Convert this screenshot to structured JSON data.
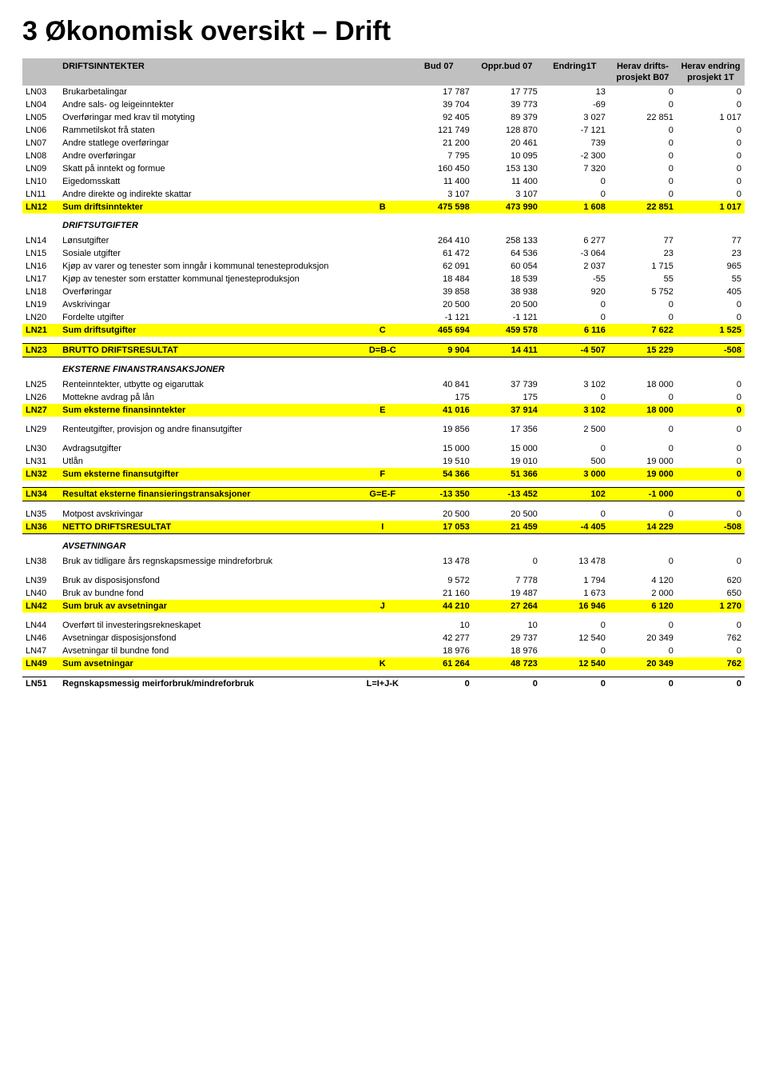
{
  "title": "3  Økonomisk oversikt – Drift",
  "header": {
    "section1": "DRIFTSINNTEKTER",
    "cols": [
      "Bud 07",
      "Oppr.bud 07",
      "Endring1T",
      "Herav drifts-prosjekt B07",
      "Herav endring prosjekt 1T"
    ]
  },
  "colors": {
    "header_bg": "#c0c0c0",
    "highlight": "#ffff00",
    "text": "#000000",
    "bg": "#ffffff"
  },
  "rows": [
    {
      "t": "r",
      "c": "LN03",
      "l": "Brukarbetalingar",
      "v": [
        "17 787",
        "17 775",
        "13",
        "0",
        "0"
      ]
    },
    {
      "t": "r",
      "c": "LN04",
      "l": "Andre sals- og leigeinntekter",
      "v": [
        "39 704",
        "39 773",
        "-69",
        "0",
        "0"
      ]
    },
    {
      "t": "r",
      "c": "LN05",
      "l": "Overføringar med krav til motyting",
      "v": [
        "92 405",
        "89 379",
        "3 027",
        "22 851",
        "1 017"
      ]
    },
    {
      "t": "r",
      "c": "LN06",
      "l": "Rammetilskot frå staten",
      "v": [
        "121 749",
        "128 870",
        "-7 121",
        "0",
        "0"
      ]
    },
    {
      "t": "r",
      "c": "LN07",
      "l": "Andre statlege overføringar",
      "v": [
        "21 200",
        "20 461",
        "739",
        "0",
        "0"
      ]
    },
    {
      "t": "r",
      "c": "LN08",
      "l": "Andre overføringar",
      "v": [
        "7 795",
        "10 095",
        "-2 300",
        "0",
        "0"
      ]
    },
    {
      "t": "r",
      "c": "LN09",
      "l": "Skatt på inntekt og formue",
      "v": [
        "160 450",
        "153 130",
        "7 320",
        "0",
        "0"
      ]
    },
    {
      "t": "r",
      "c": "LN10",
      "l": "Eigedomsskatt",
      "v": [
        "11 400",
        "11 400",
        "0",
        "0",
        "0"
      ]
    },
    {
      "t": "r",
      "c": "LN11",
      "l": "Andre direkte og indirekte skattar",
      "v": [
        "3 107",
        "3 107",
        "0",
        "0",
        "0"
      ]
    },
    {
      "t": "y",
      "c": "LN12",
      "l": "Sum driftsinntekter",
      "f": "B",
      "v": [
        "475 598",
        "473 990",
        "1 608",
        "22 851",
        "1 017"
      ]
    },
    {
      "t": "sec",
      "l": "DRIFTSUTGIFTER"
    },
    {
      "t": "r",
      "c": "LN14",
      "l": "Lønsutgifter",
      "v": [
        "264 410",
        "258 133",
        "6 277",
        "77",
        "77"
      ]
    },
    {
      "t": "r",
      "c": "LN15",
      "l": "Sosiale utgifter",
      "v": [
        "61 472",
        "64 536",
        "-3 064",
        "23",
        "23"
      ]
    },
    {
      "t": "r",
      "c": "LN16",
      "l": "Kjøp av varer og tenester som inngår i kommunal tenesteproduksjon",
      "v": [
        "62 091",
        "60 054",
        "2 037",
        "1 715",
        "965"
      ]
    },
    {
      "t": "r",
      "c": "LN17",
      "l": "Kjøp av tenester som erstatter kommunal tjenesteproduksjon",
      "v": [
        "18 484",
        "18 539",
        "-55",
        "55",
        "55"
      ]
    },
    {
      "t": "r",
      "c": "LN18",
      "l": "Overføringar",
      "v": [
        "39 858",
        "38 938",
        "920",
        "5 752",
        "405"
      ]
    },
    {
      "t": "r",
      "c": "LN19",
      "l": "Avskrivingar",
      "v": [
        "20 500",
        "20 500",
        "0",
        "0",
        "0"
      ]
    },
    {
      "t": "r",
      "c": "LN20",
      "l": "Fordelte utgifter",
      "v": [
        "-1 121",
        "-1 121",
        "0",
        "0",
        "0"
      ]
    },
    {
      "t": "y",
      "c": "LN21",
      "l": "Sum driftsutgifter",
      "f": "C",
      "v": [
        "465 694",
        "459 578",
        "6 116",
        "7 622",
        "1 525"
      ]
    },
    {
      "t": "sp"
    },
    {
      "t": "y",
      "c": "LN23",
      "l": "BRUTTO DRIFTSRESULTAT",
      "f": "D=B-C",
      "v": [
        "9 904",
        "14 411",
        "-4 507",
        "15 229",
        "-508"
      ],
      "tb": true,
      "bb": true
    },
    {
      "t": "sec",
      "l": "EKSTERNE FINANSTRANSAKSJONER"
    },
    {
      "t": "r",
      "c": "LN25",
      "l": "Renteinntekter, utbytte og eigaruttak",
      "v": [
        "40 841",
        "37 739",
        "3 102",
        "18 000",
        "0"
      ]
    },
    {
      "t": "r",
      "c": "LN26",
      "l": "Mottekne avdrag på lån",
      "v": [
        "175",
        "175",
        "0",
        "0",
        "0"
      ]
    },
    {
      "t": "y",
      "c": "LN27",
      "l": "Sum eksterne finansinntekter",
      "f": "E",
      "v": [
        "41 016",
        "37 914",
        "3 102",
        "18 000",
        "0"
      ]
    },
    {
      "t": "sp"
    },
    {
      "t": "r",
      "c": "LN29",
      "l": "Renteutgifter, provisjon og andre finansutgifter",
      "v": [
        "19 856",
        "17 356",
        "2 500",
        "0",
        "0"
      ]
    },
    {
      "t": "sp"
    },
    {
      "t": "r",
      "c": "LN30",
      "l": "Avdragsutgifter",
      "v": [
        "15 000",
        "15 000",
        "0",
        "0",
        "0"
      ]
    },
    {
      "t": "r",
      "c": "LN31",
      "l": "Utlån",
      "v": [
        "19 510",
        "19 010",
        "500",
        "19 000",
        "0"
      ]
    },
    {
      "t": "y",
      "c": "LN32",
      "l": "Sum eksterne finansutgifter",
      "f": "F",
      "v": [
        "54 366",
        "51 366",
        "3 000",
        "19 000",
        "0"
      ]
    },
    {
      "t": "sp"
    },
    {
      "t": "y",
      "c": "LN34",
      "l": "Resultat eksterne finansieringstransaksjoner",
      "f": "G=E-F",
      "v": [
        "-13 350",
        "-13 452",
        "102",
        "-1 000",
        "0"
      ],
      "tb": true,
      "bb": true
    },
    {
      "t": "sp"
    },
    {
      "t": "r",
      "c": "LN35",
      "l": "Motpost avskrivingar",
      "v": [
        "20 500",
        "20 500",
        "0",
        "0",
        "0"
      ]
    },
    {
      "t": "y",
      "c": "LN36",
      "l": "NETTO DRIFTSRESULTAT",
      "f": "I",
      "v": [
        "17 053",
        "21 459",
        "-4 405",
        "14 229",
        "-508"
      ],
      "bb": true
    },
    {
      "t": "sec",
      "l": "AVSETNINGAR"
    },
    {
      "t": "r",
      "c": "LN38",
      "l": "Bruk av tidligare års regnskapsmessige mindreforbruk",
      "v": [
        "13 478",
        "0",
        "13 478",
        "0",
        "0"
      ]
    },
    {
      "t": "sp"
    },
    {
      "t": "r",
      "c": "LN39",
      "l": "Bruk av disposisjonsfond",
      "v": [
        "9 572",
        "7 778",
        "1 794",
        "4 120",
        "620"
      ]
    },
    {
      "t": "r",
      "c": "LN40",
      "l": "Bruk av bundne fond",
      "v": [
        "21 160",
        "19 487",
        "1 673",
        "2 000",
        "650"
      ]
    },
    {
      "t": "y",
      "c": "LN42",
      "l": "Sum bruk av avsetningar",
      "f": "J",
      "v": [
        "44 210",
        "27 264",
        "16 946",
        "6 120",
        "1 270"
      ]
    },
    {
      "t": "sp"
    },
    {
      "t": "r",
      "c": "LN44",
      "l": "Overført til investeringsrekneskapet",
      "v": [
        "10",
        "10",
        "0",
        "0",
        "0"
      ]
    },
    {
      "t": "r",
      "c": "LN46",
      "l": "Avsetningar disposisjonsfond",
      "v": [
        "42 277",
        "29 737",
        "12 540",
        "20 349",
        "762"
      ]
    },
    {
      "t": "r",
      "c": "LN47",
      "l": "Avsetningar til bundne fond",
      "v": [
        "18 976",
        "18 976",
        "0",
        "0",
        "0"
      ]
    },
    {
      "t": "y",
      "c": "LN49",
      "l": "Sum avsetningar",
      "f": "K",
      "v": [
        "61 264",
        "48 723",
        "12 540",
        "20 349",
        "762"
      ]
    },
    {
      "t": "sp"
    },
    {
      "t": "b",
      "c": "LN51",
      "l": "Regnskapsmessig meirforbruk/mindreforbruk",
      "f": "L=I+J-K",
      "v": [
        "0",
        "0",
        "0",
        "0",
        "0"
      ],
      "tb": true
    }
  ]
}
